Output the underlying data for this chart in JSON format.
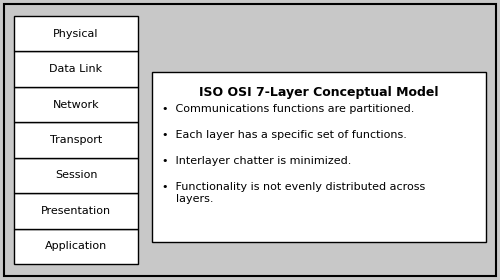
{
  "layers": [
    "Application",
    "Presentation",
    "Session",
    "Transport",
    "Network",
    "Data Link",
    "Physical"
  ],
  "title": "ISO OSI 7-Layer Conceptual Model",
  "bullets": [
    "Communications functions are partitioned.",
    "Each layer has a specific set of functions.",
    "Interlayer chatter is minimized.",
    "Functionality is not evenly distributed across\n    layers."
  ],
  "bg_color": "#c8c8c8",
  "box_face_color": "#ffffff",
  "box_edge_color": "#000000",
  "text_color": "#000000",
  "layer_font_size": 8,
  "bullet_font_size": 8,
  "title_font_size": 9
}
